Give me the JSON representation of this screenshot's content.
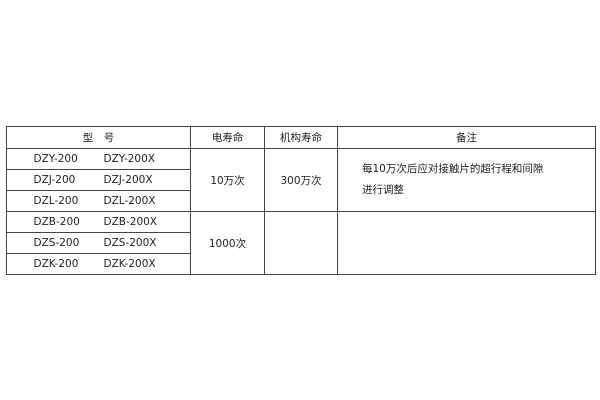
{
  "table": {
    "headers": [
      "型　号",
      "电寿命",
      "机构寿命",
      "备注"
    ],
    "rows": [
      [
        "DZY-200",
        "DZY-200X"
      ],
      [
        "DZJ-200",
        "DZJ-200X"
      ],
      [
        "DZL-200",
        "DZL-200X"
      ],
      [
        "DZB-200",
        "DZB-200X"
      ],
      [
        "DZS-200",
        "DZS-200X"
      ],
      [
        "DZK-200",
        "DZK-200X"
      ]
    ],
    "groups": [
      {
        "electrical_life": "10万次",
        "mechanical_life": "300万次",
        "remark_lines": [
          "每10万次后应对接触片的超行程和间隙",
          "进行调整"
        ]
      },
      {
        "electrical_life": "1000次",
        "mechanical_life": "",
        "remark_lines": []
      }
    ]
  }
}
